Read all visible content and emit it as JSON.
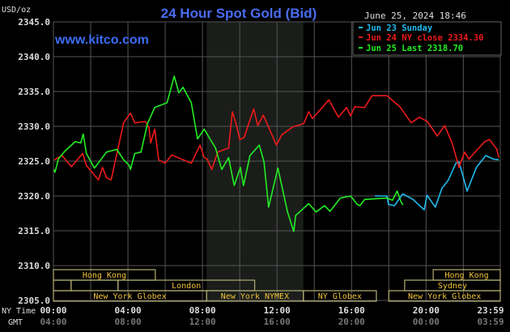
{
  "header": {
    "title": "24 Hour Spot Gold (Bid)",
    "website": "www.kitco.com",
    "timestamp": "June 25, 2024 18:46",
    "unit_label": "USD/oz"
  },
  "colors": {
    "background": "#000000",
    "title": "#4a6cf0",
    "website": "#3a6cf5",
    "grid": "#555555",
    "nymex_shade": "#1a1d1a",
    "session_border": "#b5ae72",
    "session_text": "#f2c33a",
    "axis_text": "#dddddd",
    "gmt_text": "#777777"
  },
  "chart_data": {
    "type": "line",
    "title": "24 Hour Spot Gold (Bid)",
    "ylabel": "USD/oz",
    "ylim": [
      2305,
      2345
    ],
    "xlim": [
      "00:00",
      "23:59"
    ],
    "grid": true,
    "legend_placement": "top-right",
    "y_ticks": [
      "2305.0",
      "2310.0",
      "2315.0",
      "2320.0",
      "2325.0",
      "2330.0",
      "2335.0",
      "2340.0",
      "2345.0"
    ],
    "x_axis": {
      "row_labels": [
        "NY Time",
        "GMT"
      ],
      "ny_ticks": [
        "00:00",
        "04:00",
        "08:00",
        "12:00",
        "16:00",
        "20:00",
        "23:59"
      ],
      "gmt_ticks": [
        "04:00",
        "08:00",
        "12:00",
        "16:00",
        "20:00",
        "00:00",
        "03:59"
      ]
    },
    "series": [
      {
        "name": "Jun 23 Sunday",
        "legend": "Jun 23 Sunday",
        "color": "#22bbee",
        "points": [
          [
            "17:15",
            2320.0
          ],
          [
            "17:54",
            2320.0
          ],
          [
            "17:59",
            2318.8
          ],
          [
            "18:18",
            2318.6
          ],
          [
            "18:45",
            2320.3
          ],
          [
            "19:18",
            2319.5
          ],
          [
            "19:54",
            2318.0
          ],
          [
            "20:03",
            2320.1
          ],
          [
            "20:30",
            2318.4
          ],
          [
            "20:51",
            2321.1
          ],
          [
            "21:12",
            2322.3
          ],
          [
            "21:36",
            2324.7
          ],
          [
            "21:46",
            2324.9
          ],
          [
            "22:12",
            2320.7
          ],
          [
            "22:42",
            2324.1
          ],
          [
            "23:12",
            2325.8
          ],
          [
            "23:36",
            2325.3
          ],
          [
            "23:54",
            2325.2
          ]
        ]
      },
      {
        "name": "Jun 24 NY close",
        "legend": "Jun 24 NY close 2334.30",
        "color": "#ee1a1a",
        "points": [
          [
            "00:03",
            2325.2
          ],
          [
            "00:28",
            2325.8
          ],
          [
            "00:58",
            2324.2
          ],
          [
            "01:34",
            2326.1
          ],
          [
            "01:46",
            2324.4
          ],
          [
            "02:25",
            2322.3
          ],
          [
            "02:38",
            2324.1
          ],
          [
            "02:51",
            2322.6
          ],
          [
            "03:06",
            2322.3
          ],
          [
            "03:46",
            2330.5
          ],
          [
            "04:08",
            2331.9
          ],
          [
            "04:22",
            2330.5
          ],
          [
            "04:56",
            2330.7
          ],
          [
            "05:08",
            2329.8
          ],
          [
            "05:13",
            2327.6
          ],
          [
            "05:26",
            2329.6
          ],
          [
            "05:39",
            2325.2
          ],
          [
            "06:00",
            2324.7
          ],
          [
            "06:21",
            2325.9
          ],
          [
            "07:24",
            2324.7
          ],
          [
            "07:52",
            2327.3
          ],
          [
            "08:06",
            2325.5
          ],
          [
            "08:15",
            2325.3
          ],
          [
            "08:30",
            2323.8
          ],
          [
            "08:49",
            2326.3
          ],
          [
            "09:24",
            2326.9
          ],
          [
            "09:36",
            2332.1
          ],
          [
            "09:48",
            2330.4
          ],
          [
            "10:00",
            2328.1
          ],
          [
            "10:14",
            2328.4
          ],
          [
            "10:45",
            2332.5
          ],
          [
            "10:58",
            2330.1
          ],
          [
            "11:16",
            2331.6
          ],
          [
            "11:58",
            2327.3
          ],
          [
            "12:16",
            2328.8
          ],
          [
            "12:50",
            2329.9
          ],
          [
            "13:26",
            2330.4
          ],
          [
            "13:42",
            2332.1
          ],
          [
            "13:54",
            2331.1
          ],
          [
            "14:47",
            2333.8
          ],
          [
            "15:18",
            2331.3
          ],
          [
            "15:44",
            2332.7
          ],
          [
            "15:57",
            2331.5
          ],
          [
            "16:10",
            2332.8
          ],
          [
            "16:42",
            2332.7
          ],
          [
            "17:06",
            2334.4
          ],
          [
            "17:54",
            2334.4
          ],
          [
            "18:36",
            2332.8
          ],
          [
            "19:12",
            2330.5
          ],
          [
            "19:38",
            2331.3
          ],
          [
            "20:04",
            2330.7
          ],
          [
            "20:36",
            2328.6
          ],
          [
            "21:00",
            2330.1
          ],
          [
            "21:24",
            2327.6
          ],
          [
            "21:46",
            2324.1
          ],
          [
            "22:04",
            2326.3
          ],
          [
            "22:18",
            2325.3
          ],
          [
            "22:46",
            2326.7
          ],
          [
            "23:09",
            2327.8
          ],
          [
            "23:24",
            2328.1
          ],
          [
            "23:48",
            2326.7
          ],
          [
            "23:54",
            2325.5
          ]
        ]
      },
      {
        "name": "Jun 25 Last",
        "legend": "Jun 25 Last 2318.70",
        "color": "#22ee22",
        "points": [
          [
            "00:02",
            2323.8
          ],
          [
            "00:05",
            2323.4
          ],
          [
            "00:16",
            2325.3
          ],
          [
            "00:36",
            2326.4
          ],
          [
            "01:10",
            2327.8
          ],
          [
            "01:28",
            2327.6
          ],
          [
            "01:36",
            2328.9
          ],
          [
            "01:46",
            2326.1
          ],
          [
            "02:12",
            2324.0
          ],
          [
            "02:51",
            2326.3
          ],
          [
            "03:24",
            2326.7
          ],
          [
            "03:46",
            2325.2
          ],
          [
            "04:04",
            2324.4
          ],
          [
            "04:08",
            2323.8
          ],
          [
            "04:22",
            2326.1
          ],
          [
            "04:42",
            2326.3
          ],
          [
            "05:03",
            2330.4
          ],
          [
            "05:26",
            2332.7
          ],
          [
            "06:06",
            2333.4
          ],
          [
            "06:29",
            2337.2
          ],
          [
            "06:44",
            2334.8
          ],
          [
            "06:57",
            2335.6
          ],
          [
            "07:24",
            2333.4
          ],
          [
            "07:44",
            2328.2
          ],
          [
            "08:06",
            2329.6
          ],
          [
            "08:24",
            2328.2
          ],
          [
            "08:42",
            2326.9
          ],
          [
            "09:02",
            2323.8
          ],
          [
            "09:24",
            2325.5
          ],
          [
            "09:42",
            2321.5
          ],
          [
            "10:02",
            2324.1
          ],
          [
            "10:12",
            2321.5
          ],
          [
            "10:33",
            2325.8
          ],
          [
            "11:03",
            2327.3
          ],
          [
            "11:18",
            2324.9
          ],
          [
            "11:33",
            2318.4
          ],
          [
            "12:03",
            2324.0
          ],
          [
            "12:34",
            2317.7
          ],
          [
            "12:54",
            2314.9
          ],
          [
            "13:00",
            2317.2
          ],
          [
            "13:42",
            2318.9
          ],
          [
            "14:06",
            2317.7
          ],
          [
            "14:33",
            2318.6
          ],
          [
            "14:51",
            2317.8
          ],
          [
            "15:24",
            2319.7
          ],
          [
            "15:57",
            2320.0
          ],
          [
            "16:18",
            2318.8
          ],
          [
            "16:27",
            2318.6
          ],
          [
            "16:42",
            2319.5
          ],
          [
            "17:54",
            2319.7
          ],
          [
            "18:12",
            2319.4
          ],
          [
            "18:27",
            2320.7
          ],
          [
            "18:39",
            2319.2
          ],
          [
            "18:46",
            2318.7
          ]
        ]
      }
    ],
    "nymex_shade": [
      "08:13",
      "13:25"
    ],
    "sessions": [
      {
        "row": 0,
        "label": "Hong Kong",
        "start": "00:00",
        "end": "05:28"
      },
      {
        "row": 0,
        "label": "Hong Kong",
        "start": "20:23",
        "end": "23:59"
      },
      {
        "row": 1,
        "label": "",
        "start": "00:00",
        "end": "00:57"
      },
      {
        "row": 1,
        "label": "",
        "start": "00:57",
        "end": "03:28"
      },
      {
        "row": 1,
        "label": "London",
        "start": "03:28",
        "end": "10:48"
      },
      {
        "row": 1,
        "label": "Sydney",
        "start": "18:51",
        "end": "23:59"
      },
      {
        "row": 2,
        "label": "New York Globex",
        "start": "00:00",
        "end": "08:13"
      },
      {
        "row": 2,
        "label": "New York NYMEX",
        "start": "08:13",
        "end": "13:25"
      },
      {
        "row": 2,
        "label": "NY Globex",
        "start": "13:25",
        "end": "17:20"
      },
      {
        "row": 2,
        "label": "New York Globex",
        "start": "18:00",
        "end": "23:59"
      }
    ]
  }
}
